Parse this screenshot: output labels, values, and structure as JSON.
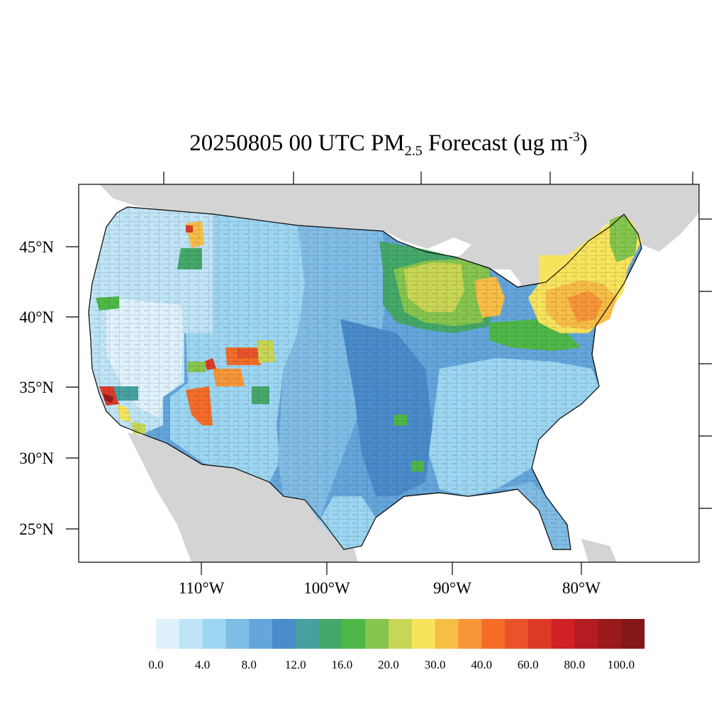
{
  "title": {
    "prefix": "20250805 00 UTC PM",
    "subscript": "2.5",
    "middle": " Forecast (ug m",
    "superscript": "-3",
    "suffix": ")"
  },
  "lat_labels": [
    "45°N",
    "40°N",
    "35°N",
    "30°N",
    "25°N"
  ],
  "lon_labels": [
    "110°W",
    "100°W",
    "90°W",
    "80°W"
  ],
  "colorbar": {
    "labels": [
      "0.0",
      "4.0",
      "8.0",
      "12.0",
      "16.0",
      "20.0",
      "30.0",
      "40.0",
      "60.0",
      "80.0",
      "100.0"
    ],
    "colors": [
      "#dff2fb",
      "#bfe4f6",
      "#9cd6f2",
      "#80bde6",
      "#64a6dc",
      "#4a8bca",
      "#48a0a0",
      "#45a86a",
      "#4db848",
      "#86c54e",
      "#c8d655",
      "#f8e45c",
      "#f8bd45",
      "#f79638",
      "#f46c28",
      "#e9522a",
      "#dc3a26",
      "#cf2126",
      "#b31d22",
      "#9a1a1c",
      "#85171a"
    ]
  },
  "colors": {
    "land_background": "#d4d4d4",
    "water": "#ffffff"
  }
}
